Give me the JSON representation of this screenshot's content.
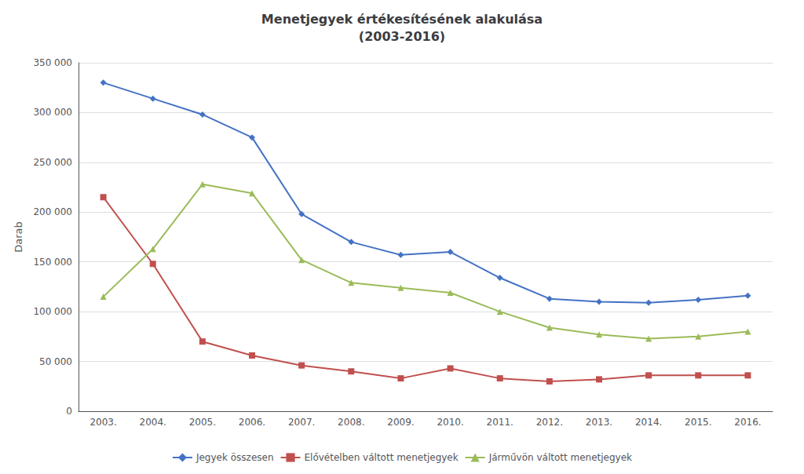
{
  "chart_data": {
    "type": "line",
    "title": "Menetjegyek értékesítésének alakulása\n(2003-2016)",
    "ylabel": "Darab",
    "categories": [
      "2003.",
      "2004.",
      "2005.",
      "2006.",
      "2007.",
      "2008.",
      "2009.",
      "2010.",
      "2011.",
      "2012.",
      "2013.",
      "2014.",
      "2015.",
      "2016."
    ],
    "series": [
      {
        "name": "Jegyek összesen",
        "color": "#4472C4",
        "marker": "diamond",
        "values": [
          330000,
          314000,
          298000,
          275000,
          198000,
          170000,
          157000,
          160000,
          134000,
          113000,
          110000,
          109000,
          112000,
          116000
        ]
      },
      {
        "name": "Elővételben váltott menetjegyek",
        "color": "#C0504D",
        "marker": "square",
        "values": [
          215000,
          148000,
          70000,
          56000,
          46000,
          40000,
          33000,
          43000,
          33000,
          30000,
          32000,
          36000,
          36000,
          36000
        ]
      },
      {
        "name": "Járművön váltott menetjegyek",
        "color": "#9BBB59",
        "marker": "triangle",
        "values": [
          115000,
          163000,
          228000,
          219000,
          152000,
          129000,
          124000,
          119000,
          100000,
          84000,
          77000,
          73000,
          75000,
          80000
        ]
      }
    ],
    "ylim": [
      0,
      350000
    ],
    "yticks": [
      0,
      {
        "value": 50000,
        "label": "50 000"
      },
      {
        "value": 100000,
        "label": "100 000"
      },
      {
        "value": 150000,
        "label": "150 000"
      },
      {
        "value": 200000,
        "label": "200 000"
      },
      {
        "value": 250000,
        "label": "250 000"
      },
      {
        "value": 300000,
        "label": "300 000"
      },
      {
        "value": 350000,
        "label": "350 000"
      }
    ],
    "grid": true,
    "legend": "bottom"
  }
}
